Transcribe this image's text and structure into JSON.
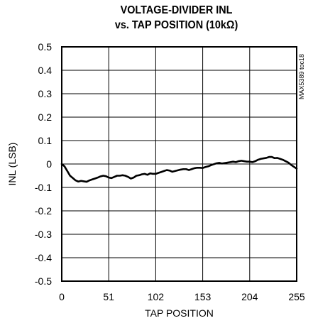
{
  "chart_data": {
    "type": "line",
    "title_line1": "VOLTAGE-DIVIDER INL",
    "title_line2": "vs. TAP POSITION (10kΩ)",
    "xlabel": "TAP POSITION",
    "ylabel": "INL (LSB)",
    "xlim": [
      0,
      255
    ],
    "ylim": [
      -0.5,
      0.5
    ],
    "x_ticks": [
      0,
      51,
      102,
      153,
      204,
      255
    ],
    "y_ticks": [
      0.5,
      0.4,
      0.3,
      0.2,
      0.1,
      0,
      -0.1,
      -0.2,
      -0.3,
      -0.4,
      -0.5
    ],
    "y_tick_labels": [
      "0.5",
      "0.4",
      "0.3",
      "0.2",
      "0.1",
      "0",
      "-0.1",
      "-0.2",
      "-0.3",
      "-0.4",
      "-0.5"
    ],
    "grid": true,
    "watermark": "MAX5389 toc18",
    "series": [
      {
        "x": [
          0,
          3,
          6,
          9,
          12,
          15,
          18,
          21,
          24,
          27,
          30,
          33,
          36,
          39,
          42,
          45,
          48,
          51,
          54,
          57,
          60,
          63,
          66,
          69,
          72,
          75,
          78,
          81,
          84,
          87,
          90,
          93,
          96,
          99,
          102,
          105,
          108,
          111,
          114,
          117,
          120,
          123,
          126,
          129,
          132,
          135,
          138,
          141,
          144,
          147,
          150,
          153,
          156,
          159,
          162,
          165,
          168,
          171,
          174,
          177,
          180,
          183,
          186,
          189,
          192,
          195,
          198,
          201,
          204,
          207,
          210,
          213,
          216,
          219,
          222,
          225,
          228,
          231,
          234,
          237,
          240,
          243,
          246,
          249,
          252,
          255
        ],
        "y": [
          0.0,
          -0.01,
          -0.03,
          -0.05,
          -0.06,
          -0.07,
          -0.075,
          -0.072,
          -0.074,
          -0.076,
          -0.07,
          -0.066,
          -0.062,
          -0.058,
          -0.053,
          -0.05,
          -0.052,
          -0.058,
          -0.06,
          -0.055,
          -0.05,
          -0.05,
          -0.048,
          -0.05,
          -0.055,
          -0.062,
          -0.058,
          -0.05,
          -0.048,
          -0.044,
          -0.042,
          -0.046,
          -0.04,
          -0.042,
          -0.042,
          -0.038,
          -0.034,
          -0.03,
          -0.026,
          -0.028,
          -0.033,
          -0.03,
          -0.027,
          -0.024,
          -0.022,
          -0.022,
          -0.026,
          -0.022,
          -0.018,
          -0.016,
          -0.016,
          -0.017,
          -0.013,
          -0.01,
          -0.005,
          -0.001,
          0.003,
          0.005,
          0.002,
          0.004,
          0.006,
          0.008,
          0.01,
          0.008,
          0.012,
          0.014,
          0.012,
          0.01,
          0.01,
          0.008,
          0.012,
          0.018,
          0.022,
          0.024,
          0.026,
          0.03,
          0.03,
          0.025,
          0.026,
          0.022,
          0.018,
          0.012,
          0.006,
          -0.004,
          -0.012,
          -0.02
        ]
      }
    ]
  }
}
